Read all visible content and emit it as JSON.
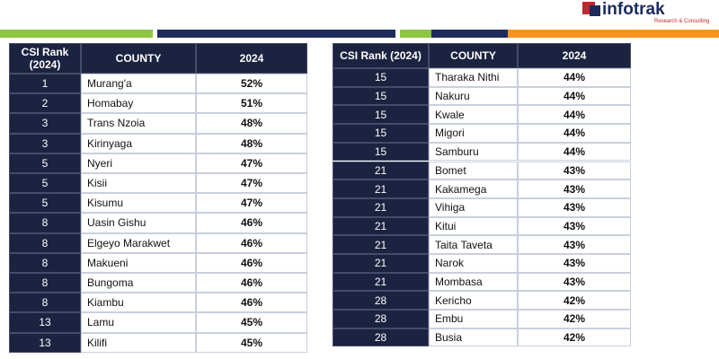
{
  "logo": {
    "name": "infotrak",
    "tagline": "Research & Consulting"
  },
  "tables": [
    {
      "header": [
        "CSI Rank (2024)",
        "COUNTY",
        "2024"
      ],
      "rows": [
        [
          "1",
          "Murang'a",
          "52%"
        ],
        [
          "2",
          "Homabay",
          "51%"
        ],
        [
          "3",
          "Trans Nzoia",
          "48%"
        ],
        [
          "3",
          "Kirinyaga",
          "48%"
        ],
        [
          "5",
          "Nyeri",
          "47%"
        ],
        [
          "5",
          "Kisii",
          "47%"
        ],
        [
          "5",
          "Kisumu",
          "47%"
        ],
        [
          "8",
          "Uasin Gishu",
          "46%"
        ],
        [
          "8",
          "Elgeyo Marakwet",
          "46%"
        ],
        [
          "8",
          "Makueni",
          "46%"
        ],
        [
          "8",
          "Bungoma",
          "46%"
        ],
        [
          "8",
          "Kiambu",
          "46%"
        ],
        [
          "13",
          "Lamu",
          "45%"
        ],
        [
          "13",
          "Kilifi",
          "45%"
        ]
      ]
    },
    {
      "header": [
        "CSI Rank (2024)",
        "COUNTY",
        "2024"
      ],
      "rows": [
        [
          "15",
          "Tharaka Nithi",
          "44%"
        ],
        [
          "15",
          "Nakuru",
          "44%"
        ],
        [
          "15",
          "Kwale",
          "44%"
        ],
        [
          "15",
          "Migori",
          "44%"
        ],
        [
          "15",
          "Samburu",
          "44%"
        ],
        [
          "21",
          "Bomet",
          "43%"
        ],
        [
          "21",
          "Kakamega",
          "43%"
        ],
        [
          "21",
          "Vihiga",
          "43%"
        ],
        [
          "21",
          "Kitui",
          "43%"
        ],
        [
          "21",
          "Taita Taveta",
          "43%"
        ],
        [
          "21",
          "Narok",
          "43%"
        ],
        [
          "21",
          "Mombasa",
          "43%"
        ],
        [
          "28",
          "Kericho",
          "42%"
        ],
        [
          "28",
          "Embu",
          "42%"
        ],
        [
          "28",
          "Busia",
          "42%"
        ]
      ]
    }
  ]
}
